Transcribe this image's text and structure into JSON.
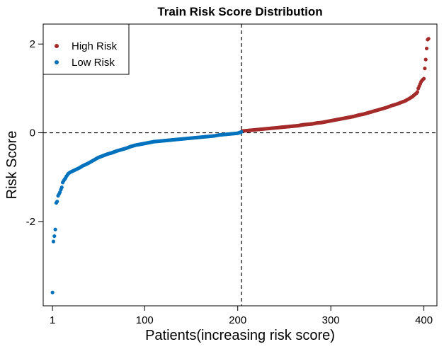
{
  "chart_data": {
    "type": "scatter",
    "title": "Train Risk Score Distribution",
    "xlabel": "Patients(increasing risk score)",
    "ylabel": "Risk Score",
    "xlim": [
      -9,
      414
    ],
    "ylim": [
      -3.9,
      2.45
    ],
    "x_ticks": [
      1,
      100,
      200,
      300,
      400
    ],
    "y_ticks": [
      -2,
      0,
      2
    ],
    "cutoff_x": 204,
    "cutoff_y": 0,
    "n": 406,
    "legend": {
      "position": "top-left"
    },
    "series": [
      {
        "name": "High Risk",
        "color": "#a52a2a",
        "x": [
          205,
          210,
          215,
          220,
          225,
          230,
          235,
          240,
          245,
          250,
          255,
          260,
          265,
          270,
          275,
          280,
          285,
          290,
          295,
          300,
          305,
          310,
          315,
          320,
          325,
          330,
          335,
          340,
          345,
          350,
          355,
          360,
          365,
          370,
          375,
          380,
          385,
          388,
          390,
          392,
          393,
          394,
          395,
          396,
          397,
          398,
          399,
          400,
          401,
          402,
          403,
          404,
          405
        ],
        "y": [
          0.04,
          0.05,
          0.06,
          0.07,
          0.08,
          0.09,
          0.1,
          0.11,
          0.12,
          0.13,
          0.14,
          0.15,
          0.16,
          0.18,
          0.19,
          0.2,
          0.22,
          0.23,
          0.25,
          0.27,
          0.29,
          0.31,
          0.33,
          0.35,
          0.37,
          0.4,
          0.42,
          0.45,
          0.48,
          0.51,
          0.54,
          0.57,
          0.61,
          0.64,
          0.68,
          0.72,
          0.78,
          0.82,
          0.86,
          0.89,
          0.92,
          1.0,
          1.05,
          1.1,
          1.15,
          1.18,
          1.2,
          1.22,
          1.45,
          1.65,
          1.9,
          2.1,
          2.12
        ]
      },
      {
        "name": "Low Risk",
        "color": "#0072bd",
        "x": [
          1,
          2,
          3,
          4,
          5,
          6,
          7,
          8,
          9,
          10,
          11,
          12,
          13,
          14,
          15,
          16,
          17,
          18,
          20,
          22,
          24,
          26,
          28,
          30,
          33,
          36,
          40,
          45,
          50,
          55,
          60,
          65,
          70,
          75,
          80,
          85,
          90,
          95,
          100,
          105,
          110,
          115,
          120,
          125,
          130,
          135,
          140,
          145,
          150,
          155,
          160,
          165,
          170,
          175,
          180,
          185,
          190,
          195,
          200,
          204
        ],
        "y": [
          -3.6,
          -2.45,
          -2.33,
          -2.18,
          -1.58,
          -1.55,
          -1.42,
          -1.38,
          -1.34,
          -1.28,
          -1.23,
          -1.12,
          -1.08,
          -1.05,
          -1.02,
          -0.98,
          -0.95,
          -0.92,
          -0.89,
          -0.87,
          -0.85,
          -0.83,
          -0.81,
          -0.79,
          -0.75,
          -0.72,
          -0.68,
          -0.62,
          -0.56,
          -0.52,
          -0.48,
          -0.45,
          -0.41,
          -0.38,
          -0.35,
          -0.31,
          -0.28,
          -0.26,
          -0.24,
          -0.22,
          -0.2,
          -0.19,
          -0.18,
          -0.17,
          -0.16,
          -0.15,
          -0.14,
          -0.13,
          -0.12,
          -0.11,
          -0.1,
          -0.09,
          -0.08,
          -0.07,
          -0.05,
          -0.04,
          -0.03,
          -0.02,
          -0.01,
          0.02
        ]
      }
    ]
  }
}
